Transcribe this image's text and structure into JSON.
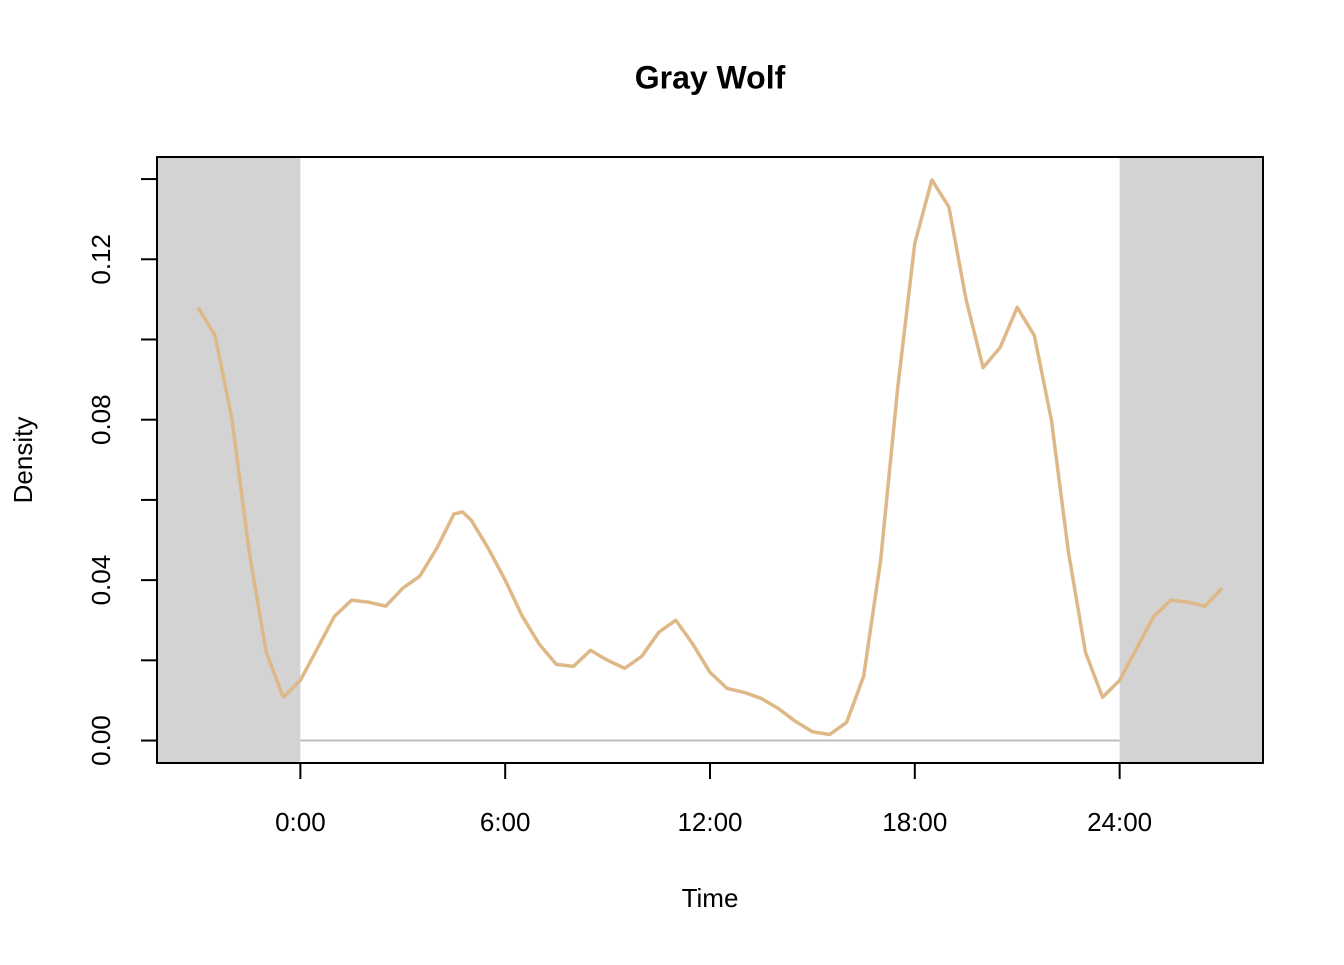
{
  "chart_data": {
    "type": "line",
    "title": "Gray Wolf",
    "xlabel": "Time",
    "ylabel": "Density",
    "color": "#deb887",
    "shade_color": "#d3d3d3",
    "shade_outside": [
      0,
      24
    ],
    "baseline_color": "#bebebe",
    "xlim": [
      -4.2,
      28.2
    ],
    "ylim": [
      -0.0056,
      0.1455
    ],
    "xticks": [
      {
        "value": 0,
        "label": "0:00"
      },
      {
        "value": 6,
        "label": "6:00"
      },
      {
        "value": 12,
        "label": "12:00"
      },
      {
        "value": 18,
        "label": "18:00"
      },
      {
        "value": 24,
        "label": "24:00"
      }
    ],
    "yticks": [
      {
        "value": 0,
        "label": "0.00"
      },
      0.04,
      0.08,
      0.12
    ],
    "yminor_ticks": [
      0.02,
      0.06,
      0.1,
      0.14
    ],
    "x": [
      -3,
      -2.5,
      -2,
      -1.5,
      -1,
      -0.5,
      0,
      0.5,
      1,
      1.5,
      2,
      2.5,
      3,
      3.5,
      4,
      4.5,
      4.75,
      5,
      5.5,
      6,
      6.5,
      7,
      7.5,
      8,
      8.5,
      9,
      9.5,
      10,
      10.5,
      11,
      11.5,
      12,
      12.5,
      13,
      13.5,
      14,
      14.5,
      15,
      15.5,
      16,
      16.5,
      17,
      17.5,
      18,
      18.5,
      19,
      19.5,
      20,
      20.5,
      21,
      21.5,
      22,
      22.5,
      23,
      23.5,
      24,
      24.5,
      25,
      25.5,
      26,
      26.5,
      27
    ],
    "values": [
      0.108,
      0.101,
      0.08,
      0.047,
      0.022,
      0.0108,
      0.015,
      0.023,
      0.031,
      0.035,
      0.0345,
      0.0335,
      0.038,
      0.041,
      0.048,
      0.0565,
      0.057,
      0.055,
      0.048,
      0.04,
      0.031,
      0.024,
      0.019,
      0.0185,
      0.0225,
      0.02,
      0.018,
      0.021,
      0.027,
      0.03,
      0.024,
      0.017,
      0.013,
      0.012,
      0.0105,
      0.008,
      0.0048,
      0.0022,
      0.0015,
      0.0045,
      0.016,
      0.045,
      0.088,
      0.124,
      0.1398,
      0.133,
      0.11,
      0.093,
      0.098,
      0.108,
      0.101,
      0.08,
      0.047,
      0.022,
      0.0108,
      0.015,
      0.023,
      0.031,
      0.035,
      0.0345,
      0.0335,
      0.038
    ]
  }
}
